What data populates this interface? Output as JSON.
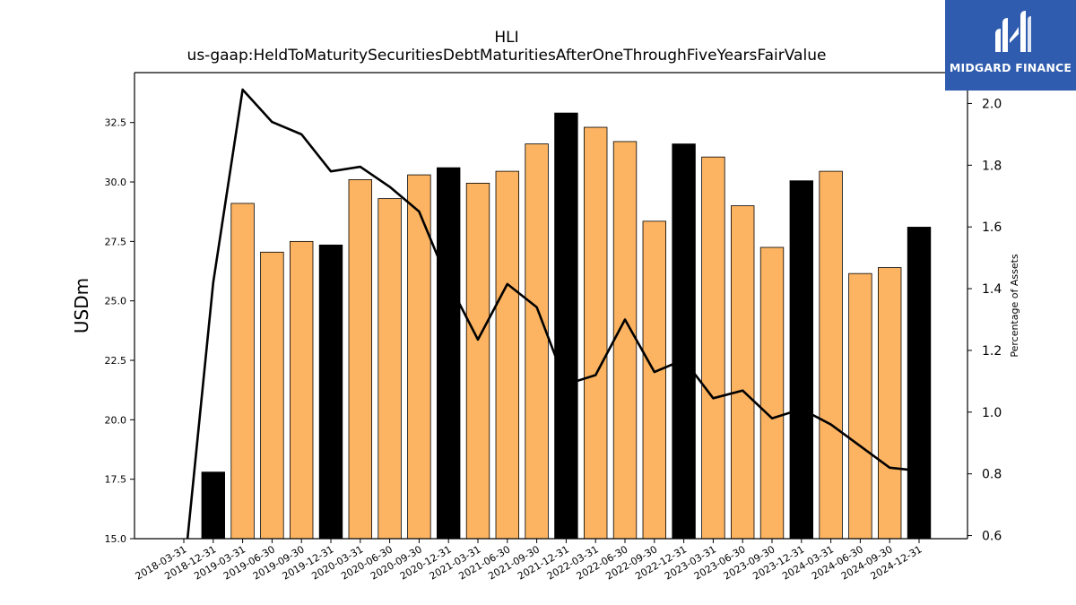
{
  "brand": {
    "name": "MIDGARD FINANCE",
    "color": "#2f5cae",
    "icon": "midgard-logo-icon"
  },
  "chart_data": {
    "type": "bar",
    "title": "HLI",
    "subtitle": "us-gaap:HeldToMaturitySecuritiesDebtMaturitiesAfterOneThroughFiveYearsFairValue",
    "ylabel": "USDm",
    "y2label": "Percentage of Assets",
    "ylim": [
      15.0,
      34.6
    ],
    "y2lim": [
      0.59,
      2.1
    ],
    "yticks": [
      15.0,
      17.5,
      20.0,
      22.5,
      25.0,
      27.5,
      30.0,
      32.5
    ],
    "y2ticks": [
      0.6,
      0.8,
      1.0,
      1.2,
      1.4,
      1.6,
      1.8,
      2.0
    ],
    "categories": [
      "2018-03-31",
      "2018-12-31",
      "2019-03-31",
      "2019-06-30",
      "2019-09-30",
      "2019-12-31",
      "2020-03-31",
      "2020-06-30",
      "2020-09-30",
      "2020-12-31",
      "2021-03-31",
      "2021-06-30",
      "2021-09-30",
      "2021-12-31",
      "2022-03-31",
      "2022-06-30",
      "2022-09-30",
      "2022-12-31",
      "2023-03-31",
      "2023-06-30",
      "2023-09-30",
      "2023-12-31",
      "2024-03-31",
      "2024-06-30",
      "2024-09-30",
      "2024-12-31"
    ],
    "series": [
      {
        "type": "bar",
        "axis": "left",
        "values": [
          null,
          17.8,
          29.1,
          27.05,
          27.5,
          27.35,
          30.1,
          29.3,
          30.3,
          30.6,
          29.95,
          30.45,
          31.6,
          32.9,
          32.3,
          31.7,
          28.35,
          31.6,
          31.05,
          29.0,
          27.25,
          30.05,
          30.45,
          26.15,
          26.4,
          28.1
        ],
        "colors": [
          "#fdb462",
          "#000000",
          "#fdb462",
          "#fdb462",
          "#fdb462",
          "#000000",
          "#fdb462",
          "#fdb462",
          "#fdb462",
          "#000000",
          "#fdb462",
          "#fdb462",
          "#fdb462",
          "#000000",
          "#fdb462",
          "#fdb462",
          "#fdb462",
          "#000000",
          "#fdb462",
          "#fdb462",
          "#fdb462",
          "#000000",
          "#fdb462",
          "#fdb462",
          "#fdb462",
          "#000000"
        ]
      },
      {
        "type": "line",
        "axis": "right",
        "color": "#000000",
        "values": [
          0.47,
          1.42,
          2.045,
          1.94,
          1.9,
          1.78,
          1.795,
          1.73,
          1.65,
          1.42,
          1.235,
          1.415,
          1.34,
          1.09,
          1.12,
          1.3,
          1.13,
          1.17,
          1.045,
          1.07,
          0.98,
          1.01,
          0.96,
          0.89,
          0.82,
          0.81
        ]
      }
    ],
    "grid": false,
    "legend": "none"
  }
}
